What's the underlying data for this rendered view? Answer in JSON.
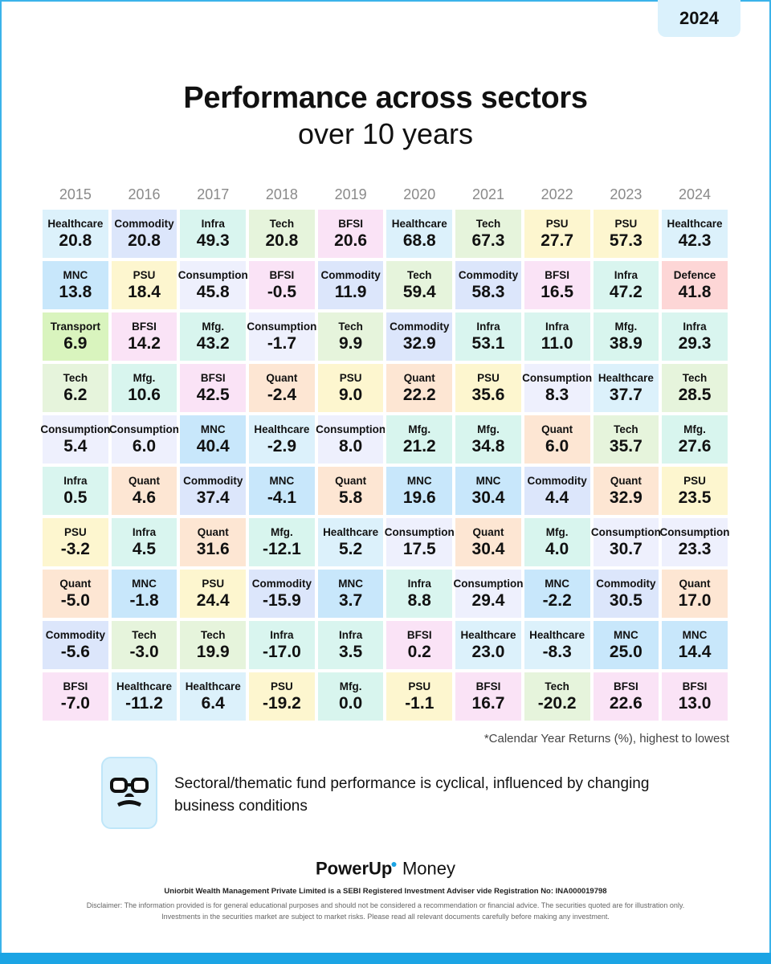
{
  "year_tab": "2024",
  "title": "Performance across sectors",
  "subtitle": "over 10 years",
  "colors": {
    "Healthcare": "#dcf1fb",
    "Commodity": "#dce6fb",
    "Infra": "#d9f5ef",
    "Tech": "#e6f4dc",
    "BFSI": "#fae3f6",
    "PSU": "#fdf6cf",
    "MNC": "#c8e7fb",
    "Consumption": "#eef0fd",
    "Transport": "#d9f4be",
    "Mfg.": "#d8f5ee",
    "Quant": "#fde6d3",
    "Defence": "#fdd6d6"
  },
  "years": [
    {
      "year": "2015",
      "cells": [
        {
          "sector": "Healthcare",
          "value": "20.8"
        },
        {
          "sector": "MNC",
          "value": "13.8"
        },
        {
          "sector": "Transport",
          "value": "6.9"
        },
        {
          "sector": "Tech",
          "value": "6.2"
        },
        {
          "sector": "Consumption",
          "value": "5.4"
        },
        {
          "sector": "Infra",
          "value": "0.5"
        },
        {
          "sector": "PSU",
          "value": "-3.2"
        },
        {
          "sector": "Quant",
          "value": "-5.0"
        },
        {
          "sector": "Commodity",
          "value": "-5.6"
        },
        {
          "sector": "BFSI",
          "value": "-7.0"
        }
      ]
    },
    {
      "year": "2016",
      "cells": [
        {
          "sector": "Commodity",
          "value": "20.8"
        },
        {
          "sector": "PSU",
          "value": "18.4"
        },
        {
          "sector": "BFSI",
          "value": "14.2"
        },
        {
          "sector": "Mfg.",
          "value": "10.6"
        },
        {
          "sector": "Consumption",
          "value": "6.0"
        },
        {
          "sector": "Quant",
          "value": "4.6"
        },
        {
          "sector": "Infra",
          "value": "4.5"
        },
        {
          "sector": "MNC",
          "value": "-1.8"
        },
        {
          "sector": "Tech",
          "value": "-3.0"
        },
        {
          "sector": "Healthcare",
          "value": "-11.2"
        }
      ]
    },
    {
      "year": "2017",
      "cells": [
        {
          "sector": "Infra",
          "value": "49.3"
        },
        {
          "sector": "Consumption",
          "value": "45.8"
        },
        {
          "sector": "Mfg.",
          "value": "43.2"
        },
        {
          "sector": "BFSI",
          "value": "42.5"
        },
        {
          "sector": "MNC",
          "value": "40.4"
        },
        {
          "sector": "Commodity",
          "value": "37.4"
        },
        {
          "sector": "Quant",
          "value": "31.6"
        },
        {
          "sector": "PSU",
          "value": "24.4"
        },
        {
          "sector": "Tech",
          "value": "19.9"
        },
        {
          "sector": "Healthcare",
          "value": "6.4"
        }
      ]
    },
    {
      "year": "2018",
      "cells": [
        {
          "sector": "Tech",
          "value": "20.8"
        },
        {
          "sector": "BFSI",
          "value": "-0.5"
        },
        {
          "sector": "Consumption",
          "value": "-1.7"
        },
        {
          "sector": "Quant",
          "value": "-2.4"
        },
        {
          "sector": "Healthcare",
          "value": "-2.9"
        },
        {
          "sector": "MNC",
          "value": "-4.1"
        },
        {
          "sector": "Mfg.",
          "value": "-12.1"
        },
        {
          "sector": "Commodity",
          "value": "-15.9"
        },
        {
          "sector": "Infra",
          "value": "-17.0"
        },
        {
          "sector": "PSU",
          "value": "-19.2"
        }
      ]
    },
    {
      "year": "2019",
      "cells": [
        {
          "sector": "BFSI",
          "value": "20.6"
        },
        {
          "sector": "Commodity",
          "value": "11.9"
        },
        {
          "sector": "Tech",
          "value": "9.9"
        },
        {
          "sector": "PSU",
          "value": "9.0"
        },
        {
          "sector": "Consumption",
          "value": "8.0"
        },
        {
          "sector": "Quant",
          "value": "5.8"
        },
        {
          "sector": "Healthcare",
          "value": "5.2"
        },
        {
          "sector": "MNC",
          "value": "3.7"
        },
        {
          "sector": "Infra",
          "value": "3.5"
        },
        {
          "sector": "Mfg.",
          "value": "0.0"
        }
      ]
    },
    {
      "year": "2020",
      "cells": [
        {
          "sector": "Healthcare",
          "value": "68.8"
        },
        {
          "sector": "Tech",
          "value": "59.4"
        },
        {
          "sector": "Commodity",
          "value": "32.9"
        },
        {
          "sector": "Quant",
          "value": "22.2"
        },
        {
          "sector": "Mfg.",
          "value": "21.2"
        },
        {
          "sector": "MNC",
          "value": "19.6"
        },
        {
          "sector": "Consumption",
          "value": "17.5"
        },
        {
          "sector": "Infra",
          "value": "8.8"
        },
        {
          "sector": "BFSI",
          "value": "0.2"
        },
        {
          "sector": "PSU",
          "value": "-1.1"
        }
      ]
    },
    {
      "year": "2021",
      "cells": [
        {
          "sector": "Tech",
          "value": "67.3"
        },
        {
          "sector": "Commodity",
          "value": "58.3"
        },
        {
          "sector": "Infra",
          "value": "53.1"
        },
        {
          "sector": "PSU",
          "value": "35.6"
        },
        {
          "sector": "Mfg.",
          "value": "34.8"
        },
        {
          "sector": "MNC",
          "value": "30.4"
        },
        {
          "sector": "Quant",
          "value": "30.4"
        },
        {
          "sector": "Consumption",
          "value": "29.4"
        },
        {
          "sector": "Healthcare",
          "value": "23.0"
        },
        {
          "sector": "BFSI",
          "value": "16.7"
        }
      ]
    },
    {
      "year": "2022",
      "cells": [
        {
          "sector": "PSU",
          "value": "27.7"
        },
        {
          "sector": "BFSI",
          "value": "16.5"
        },
        {
          "sector": "Infra",
          "value": "11.0"
        },
        {
          "sector": "Consumption",
          "value": "8.3"
        },
        {
          "sector": "Quant",
          "value": "6.0"
        },
        {
          "sector": "Commodity",
          "value": "4.4"
        },
        {
          "sector": "Mfg.",
          "value": "4.0"
        },
        {
          "sector": "MNC",
          "value": "-2.2"
        },
        {
          "sector": "Healthcare",
          "value": "-8.3"
        },
        {
          "sector": "Tech",
          "value": "-20.2"
        }
      ]
    },
    {
      "year": "2023",
      "cells": [
        {
          "sector": "PSU",
          "value": "57.3"
        },
        {
          "sector": "Infra",
          "value": "47.2"
        },
        {
          "sector": "Mfg.",
          "value": "38.9"
        },
        {
          "sector": "Healthcare",
          "value": "37.7"
        },
        {
          "sector": "Tech",
          "value": "35.7"
        },
        {
          "sector": "Quant",
          "value": "32.9"
        },
        {
          "sector": "Consumption",
          "value": "30.7"
        },
        {
          "sector": "Commodity",
          "value": "30.5"
        },
        {
          "sector": "MNC",
          "value": "25.0"
        },
        {
          "sector": "BFSI",
          "value": "22.6"
        }
      ]
    },
    {
      "year": "2024",
      "cells": [
        {
          "sector": "Healthcare",
          "value": "42.3"
        },
        {
          "sector": "Defence",
          "value": "41.8"
        },
        {
          "sector": "Infra",
          "value": "29.3"
        },
        {
          "sector": "Tech",
          "value": "28.5"
        },
        {
          "sector": "Mfg.",
          "value": "27.6"
        },
        {
          "sector": "PSU",
          "value": "23.5"
        },
        {
          "sector": "Consumption",
          "value": "23.3"
        },
        {
          "sector": "Quant",
          "value": "17.0"
        },
        {
          "sector": "MNC",
          "value": "14.4"
        },
        {
          "sector": "BFSI",
          "value": "13.0"
        }
      ]
    }
  ],
  "footnote": "*Calendar Year Returns (%), highest to lowest",
  "note": {
    "icon": "glasses-mustache-icon",
    "text": "Sectoral/thematic fund performance is cyclical, influenced by changing business conditions"
  },
  "brand": {
    "part1": "PowerUp",
    "part2": "Money"
  },
  "registration": "Uniorbit Wealth Management Private Limited is a SEBI Registered Investment Adviser vide Registration No: INA000019798",
  "disclaimer": "Disclaimer: The information provided is for general educational purposes and should not be considered a recommendation or financial advice. The securities quoted are for illustration only. Investments in the securities market are subject to market risks. Please read all relevant documents carefully before making any investment."
}
